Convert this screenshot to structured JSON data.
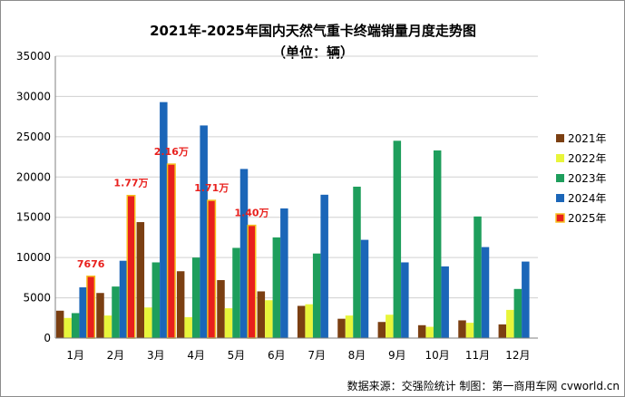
{
  "chart_data": {
    "type": "bar",
    "title": "2021年-2025年国内天然气重卡终端销量月度走势图",
    "subtitle": "（单位：辆）",
    "categories": [
      "1月",
      "2月",
      "3月",
      "4月",
      "5月",
      "6月",
      "7月",
      "8月",
      "9月",
      "10月",
      "11月",
      "12月"
    ],
    "ylim": [
      0,
      35000
    ],
    "yticks": [
      0,
      5000,
      10000,
      15000,
      20000,
      25000,
      30000,
      35000
    ],
    "grid": true,
    "legend_position": "right",
    "series": [
      {
        "name": "2021年",
        "color": "#7b3f12",
        "values": [
          3400,
          5600,
          14400,
          8300,
          7200,
          5800,
          4000,
          2400,
          2000,
          1600,
          2200,
          1700
        ]
      },
      {
        "name": "2022年",
        "color": "#e8f53a",
        "values": [
          2500,
          2800,
          3800,
          2600,
          3700,
          4700,
          4200,
          2800,
          2900,
          1400,
          1900,
          3500
        ]
      },
      {
        "name": "2023年",
        "color": "#1e9e5c",
        "values": [
          3100,
          6400,
          9400,
          10000,
          11200,
          12500,
          10500,
          18800,
          24500,
          23300,
          15100,
          6100
        ]
      },
      {
        "name": "2024年",
        "color": "#1b66b8",
        "values": [
          6300,
          9600,
          29300,
          26400,
          21000,
          16100,
          17800,
          12200,
          9400,
          8900,
          11300,
          9500
        ]
      },
      {
        "name": "2025年",
        "color": "#e8201d",
        "values": [
          7676,
          17700,
          21600,
          17100,
          14000,
          null,
          null,
          null,
          null,
          null,
          null,
          null
        ]
      }
    ],
    "annotations": [
      {
        "category": "1月",
        "text": "7676"
      },
      {
        "category": "2月",
        "text": "1.77万"
      },
      {
        "category": "3月",
        "text": "2.16万"
      },
      {
        "category": "4月",
        "text": "1.71万"
      },
      {
        "category": "5月",
        "text": "1.40万"
      }
    ],
    "source": "数据来源：交强险统计   制图：第一商用车网 cvworld.cn"
  }
}
